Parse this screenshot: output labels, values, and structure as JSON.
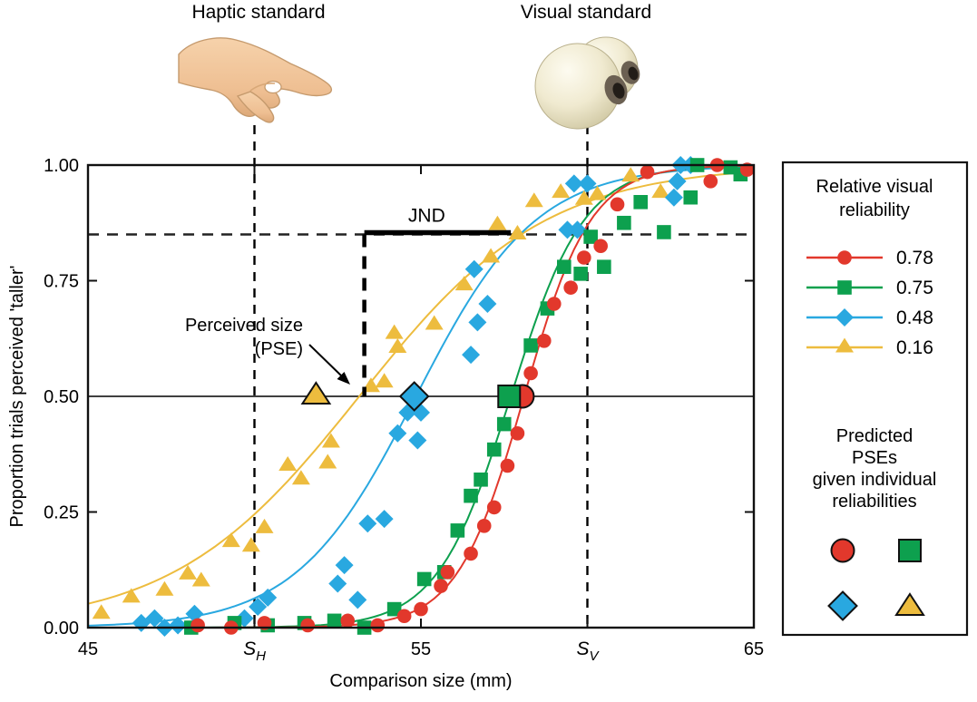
{
  "header": {
    "haptic_label": "Haptic standard",
    "visual_label": "Visual standard"
  },
  "chart_data": {
    "type": "scatter",
    "xlabel": "Comparison size (mm)",
    "ylabel": "Proportion trials perceived 'taller'",
    "xlim": [
      45,
      65
    ],
    "ylim": [
      0,
      1
    ],
    "grid": false,
    "x_ticks": [
      {
        "value": 45,
        "label": "45"
      },
      {
        "value": 55,
        "label": "55"
      },
      {
        "value": 65,
        "label": "65"
      }
    ],
    "x_standard_ticks": [
      {
        "value": 50,
        "base": "S",
        "sub": "H",
        "name": "haptic-standard"
      },
      {
        "value": 60,
        "base": "S",
        "sub": "V",
        "name": "visual-standard"
      }
    ],
    "y_ticks": [
      {
        "value": 0.0,
        "label": "0.00"
      },
      {
        "value": 0.25,
        "label": "0.25"
      },
      {
        "value": 0.5,
        "label": "0.50"
      },
      {
        "value": 0.75,
        "label": "0.75"
      },
      {
        "value": 1.0,
        "label": "1.00"
      }
    ],
    "reference_lines": {
      "solid_y": 0.5,
      "dashed_y": 0.85
    },
    "standards": {
      "haptic_x": 50,
      "visual_x": 60
    },
    "series": [
      {
        "name": "reliability-0.78",
        "reliability": "0.78",
        "color": "#e2382c",
        "marker": "circle",
        "curve": {
          "pse": 58.1,
          "slope": 1.0
        },
        "points": [
          [
            48.3,
            0.005
          ],
          [
            49.3,
            0
          ],
          [
            50.3,
            0.01
          ],
          [
            51.6,
            0.005
          ],
          [
            52.8,
            0.015
          ],
          [
            53.7,
            0.005
          ],
          [
            54.5,
            0.025
          ],
          [
            55,
            0.04
          ],
          [
            55.6,
            0.09
          ],
          [
            55.8,
            0.12
          ],
          [
            56.5,
            0.16
          ],
          [
            56.9,
            0.22
          ],
          [
            57.2,
            0.26
          ],
          [
            57.6,
            0.35
          ],
          [
            57.9,
            0.42
          ],
          [
            58.3,
            0.55
          ],
          [
            58.7,
            0.62
          ],
          [
            59,
            0.7
          ],
          [
            59.5,
            0.735
          ],
          [
            59.9,
            0.8
          ],
          [
            60.4,
            0.825
          ],
          [
            60.9,
            0.915
          ],
          [
            61.8,
            0.985
          ],
          [
            63.7,
            0.965
          ],
          [
            63.9,
            1
          ],
          [
            64.8,
            0.99
          ]
        ]
      },
      {
        "name": "reliability-0.75",
        "reliability": "0.75",
        "color": "#0da04e",
        "marker": "square",
        "curve": {
          "pse": 57.7,
          "slope": 1.1
        },
        "points": [
          [
            48.1,
            0
          ],
          [
            49.4,
            0.01
          ],
          [
            50.4,
            0.005
          ],
          [
            51.5,
            0.01
          ],
          [
            52.4,
            0.015
          ],
          [
            53.3,
            0
          ],
          [
            54.2,
            0.04
          ],
          [
            55.1,
            0.105
          ],
          [
            55.7,
            0.12
          ],
          [
            56.1,
            0.21
          ],
          [
            56.5,
            0.285
          ],
          [
            56.8,
            0.32
          ],
          [
            57.2,
            0.385
          ],
          [
            57.5,
            0.44
          ],
          [
            58.3,
            0.61
          ],
          [
            58.8,
            0.69
          ],
          [
            59.3,
            0.78
          ],
          [
            59.8,
            0.765
          ],
          [
            60.1,
            0.845
          ],
          [
            60.5,
            0.78
          ],
          [
            61.1,
            0.875
          ],
          [
            61.6,
            0.92
          ],
          [
            62.3,
            0.855
          ],
          [
            63.1,
            0.93
          ],
          [
            63.3,
            1
          ],
          [
            64.3,
            0.995
          ],
          [
            64.6,
            0.98
          ]
        ]
      },
      {
        "name": "reliability-0.48",
        "reliability": "0.48",
        "color": "#29a8e0",
        "marker": "diamond",
        "curve": {
          "pse": 54.85,
          "slope": 1.8
        },
        "points": [
          [
            46.6,
            0.01
          ],
          [
            47,
            0.02
          ],
          [
            47.3,
            0
          ],
          [
            47.7,
            0.005
          ],
          [
            48.2,
            0.03
          ],
          [
            49.7,
            0.02
          ],
          [
            50.1,
            0.045
          ],
          [
            50.4,
            0.065
          ],
          [
            52.5,
            0.095
          ],
          [
            52.7,
            0.135
          ],
          [
            53.1,
            0.06
          ],
          [
            53.4,
            0.225
          ],
          [
            53.9,
            0.235
          ],
          [
            54.3,
            0.42
          ],
          [
            54.6,
            0.465
          ],
          [
            55,
            0.465
          ],
          [
            54.9,
            0.405
          ],
          [
            56.5,
            0.59
          ],
          [
            56.7,
            0.66
          ],
          [
            57,
            0.7
          ],
          [
            56.6,
            0.775
          ],
          [
            59.4,
            0.86
          ],
          [
            59.7,
            0.86
          ],
          [
            59.6,
            0.96
          ],
          [
            60,
            0.96
          ],
          [
            62.6,
            0.93
          ],
          [
            62.7,
            0.965
          ],
          [
            62.8,
            1
          ],
          [
            63.1,
            1
          ]
        ]
      },
      {
        "name": "reliability-0.16",
        "reliability": "0.16",
        "color": "#edbc3e",
        "marker": "triangle",
        "curve": {
          "pse": 53.15,
          "slope": 2.8
        },
        "points": [
          [
            45.4,
            0.03
          ],
          [
            46.3,
            0.065
          ],
          [
            47.3,
            0.08
          ],
          [
            48,
            0.115
          ],
          [
            48.4,
            0.1
          ],
          [
            49.3,
            0.185
          ],
          [
            49.9,
            0.175
          ],
          [
            50.3,
            0.215
          ],
          [
            51,
            0.35
          ],
          [
            51.4,
            0.32
          ],
          [
            52.2,
            0.355
          ],
          [
            52.3,
            0.4
          ],
          [
            53.5,
            0.52
          ],
          [
            53.9,
            0.53
          ],
          [
            54.2,
            0.635
          ],
          [
            54.3,
            0.605
          ],
          [
            55.4,
            0.655
          ],
          [
            56.3,
            0.74
          ],
          [
            57.1,
            0.8
          ],
          [
            57.3,
            0.87
          ],
          [
            57.9,
            0.85
          ],
          [
            58.4,
            0.92
          ],
          [
            59.2,
            0.94
          ],
          [
            59.9,
            0.925
          ],
          [
            60.3,
            0.935
          ],
          [
            61.3,
            0.975
          ],
          [
            62.2,
            0.94
          ]
        ]
      }
    ],
    "predicted_pses": [
      {
        "marker": "diamond",
        "color": "#29a8e0",
        "x": 54.8,
        "y": 0.5
      },
      {
        "marker": "triangle",
        "color": "#edbc3e",
        "x": 51.85,
        "y": 0.5
      },
      {
        "marker": "circle",
        "color": "#e2382c",
        "x": 58.05,
        "y": 0.5
      },
      {
        "marker": "square",
        "color": "#0da04e",
        "x": 57.65,
        "y": 0.5
      }
    ],
    "jnd": {
      "label": "JND",
      "y": 0.85,
      "x_start": 53.3,
      "x_end": 57.7
    },
    "pse_annotation": {
      "line1": "Perceived size",
      "line2": "(PSE)"
    }
  },
  "legend": {
    "title_lines": [
      "Relative visual",
      "reliability"
    ],
    "items": [
      {
        "value": "0.78",
        "color": "#e2382c",
        "marker": "circle"
      },
      {
        "value": "0.75",
        "color": "#0da04e",
        "marker": "square"
      },
      {
        "value": "0.48",
        "color": "#29a8e0",
        "marker": "diamond"
      },
      {
        "value": "0.16",
        "color": "#edbc3e",
        "marker": "triangle"
      }
    ],
    "predicted_title_lines": [
      "Predicted",
      "PSEs",
      "given individual",
      "reliabilities"
    ]
  }
}
